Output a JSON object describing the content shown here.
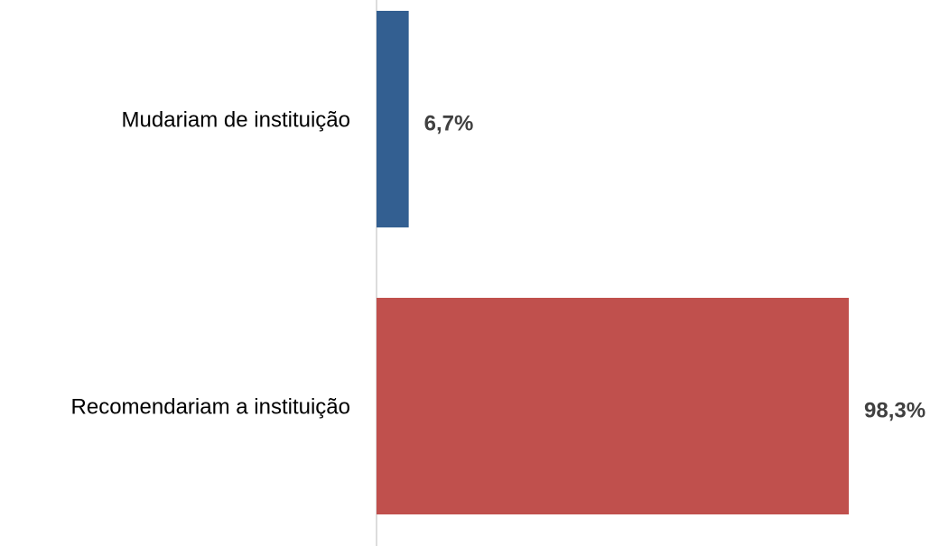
{
  "chart_data": {
    "type": "hbar",
    "categories": [
      "Mudariam de instituição",
      "Recomendariam a instituição"
    ],
    "values": [
      6.7,
      98.3
    ],
    "value_labels": [
      "6,7%",
      "98,3%"
    ],
    "colors": [
      "#335f91",
      "#c0504d"
    ]
  }
}
